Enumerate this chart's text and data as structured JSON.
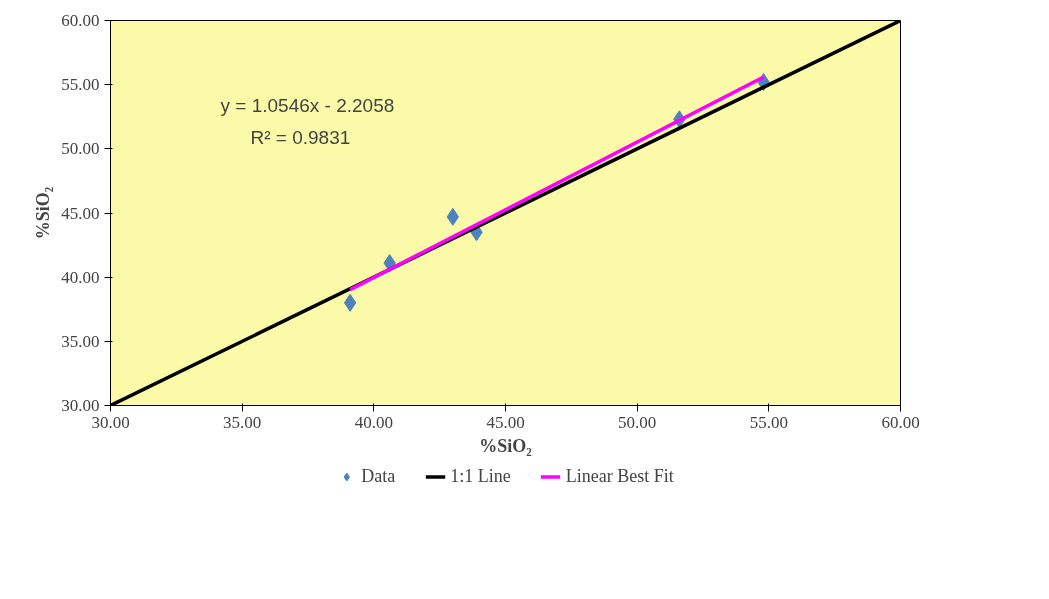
{
  "chart_data": {
    "type": "scatter",
    "xlabel": "%SiO₂",
    "ylabel": "%SiO₂",
    "xlim": [
      30,
      60
    ],
    "ylim": [
      30,
      60
    ],
    "xticks": [
      {
        "value": 30,
        "label": "30.00"
      },
      {
        "value": 35,
        "label": "35.00"
      },
      {
        "value": 40,
        "label": "40.00"
      },
      {
        "value": 45,
        "label": "45.00"
      },
      {
        "value": 50,
        "label": "50.00"
      },
      {
        "value": 55,
        "label": "55.00"
      },
      {
        "value": 60,
        "label": "60.00"
      }
    ],
    "yticks": [
      {
        "value": 30,
        "label": "30.00"
      },
      {
        "value": 35,
        "label": "35.00"
      },
      {
        "value": 40,
        "label": "40.00"
      },
      {
        "value": 45,
        "label": "45.00"
      },
      {
        "value": 50,
        "label": "50.00"
      },
      {
        "value": 55,
        "label": "55.00"
      },
      {
        "value": 60,
        "label": "60.00"
      }
    ],
    "grid": false,
    "legend": "bottom",
    "annotations": [
      "y = 1.0546x - 2.2058",
      "R² = 0.9831"
    ],
    "series": [
      {
        "name": "Data",
        "type": "scatter",
        "marker": "diamond",
        "color": "#4f81bd",
        "x": [
          39.1,
          40.6,
          43.0,
          43.9,
          51.6,
          54.8
        ],
        "values": [
          38.0,
          41.1,
          44.7,
          43.5,
          52.3,
          55.2
        ]
      },
      {
        "name": "1:1 Line",
        "type": "line",
        "color": "#000000",
        "x": [
          30,
          60
        ],
        "values": [
          30,
          60
        ]
      },
      {
        "name": "Linear Best Fit",
        "type": "line",
        "color": "#ff00ff",
        "x": [
          39.1,
          54.8
        ],
        "values": [
          39.03,
          55.59
        ]
      }
    ]
  }
}
